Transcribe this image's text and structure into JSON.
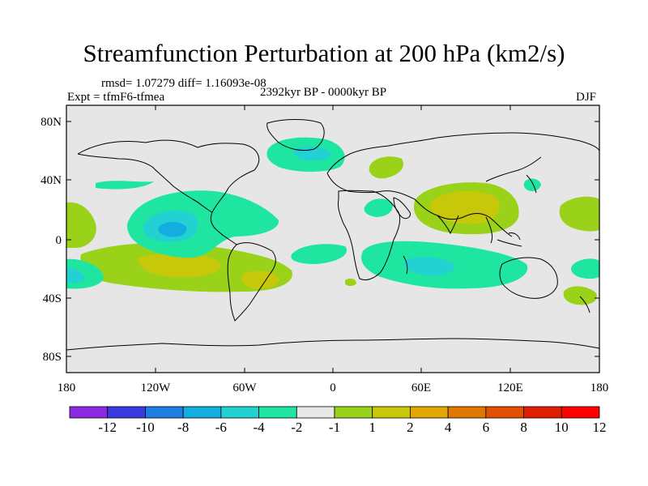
{
  "header": {
    "title": "Streamfunction Perturbation at 200 hPa (km2/s)",
    "stats": "rmsd= 1.07279 diff= 1.16093e-08",
    "experiment": "Expt = tfmF6-tfmea",
    "period": "2392kyr BP - 0000kyr BP",
    "season": "DJF"
  },
  "axes": {
    "y_ticks": [
      "80N",
      "40N",
      "0",
      "40S",
      "80S"
    ],
    "x_ticks": [
      "180",
      "120W",
      "60W",
      "0",
      "60E",
      "120E",
      "180"
    ]
  },
  "colorbar": {
    "colors": [
      "#8a2be2",
      "#3a3ae0",
      "#1e7fe0",
      "#13aee0",
      "#22d2d2",
      "#1ee6a0",
      "#e8e8e8",
      "#9ad21a",
      "#c8c80a",
      "#e0a800",
      "#e07800",
      "#e05000",
      "#e01e00",
      "#ff0000"
    ],
    "labels": [
      "-12",
      "-10",
      "-8",
      "-6",
      "-4",
      "-2",
      "-1",
      "1",
      "2",
      "4",
      "6",
      "8",
      "10",
      "12"
    ]
  },
  "colors": {
    "background": "#e6e6e6",
    "pos1": "#9ad21a",
    "pos2": "#c8c80a",
    "neg1": "#1ee6a0",
    "neg2": "#22d2d2",
    "neg3": "#13aee0"
  }
}
